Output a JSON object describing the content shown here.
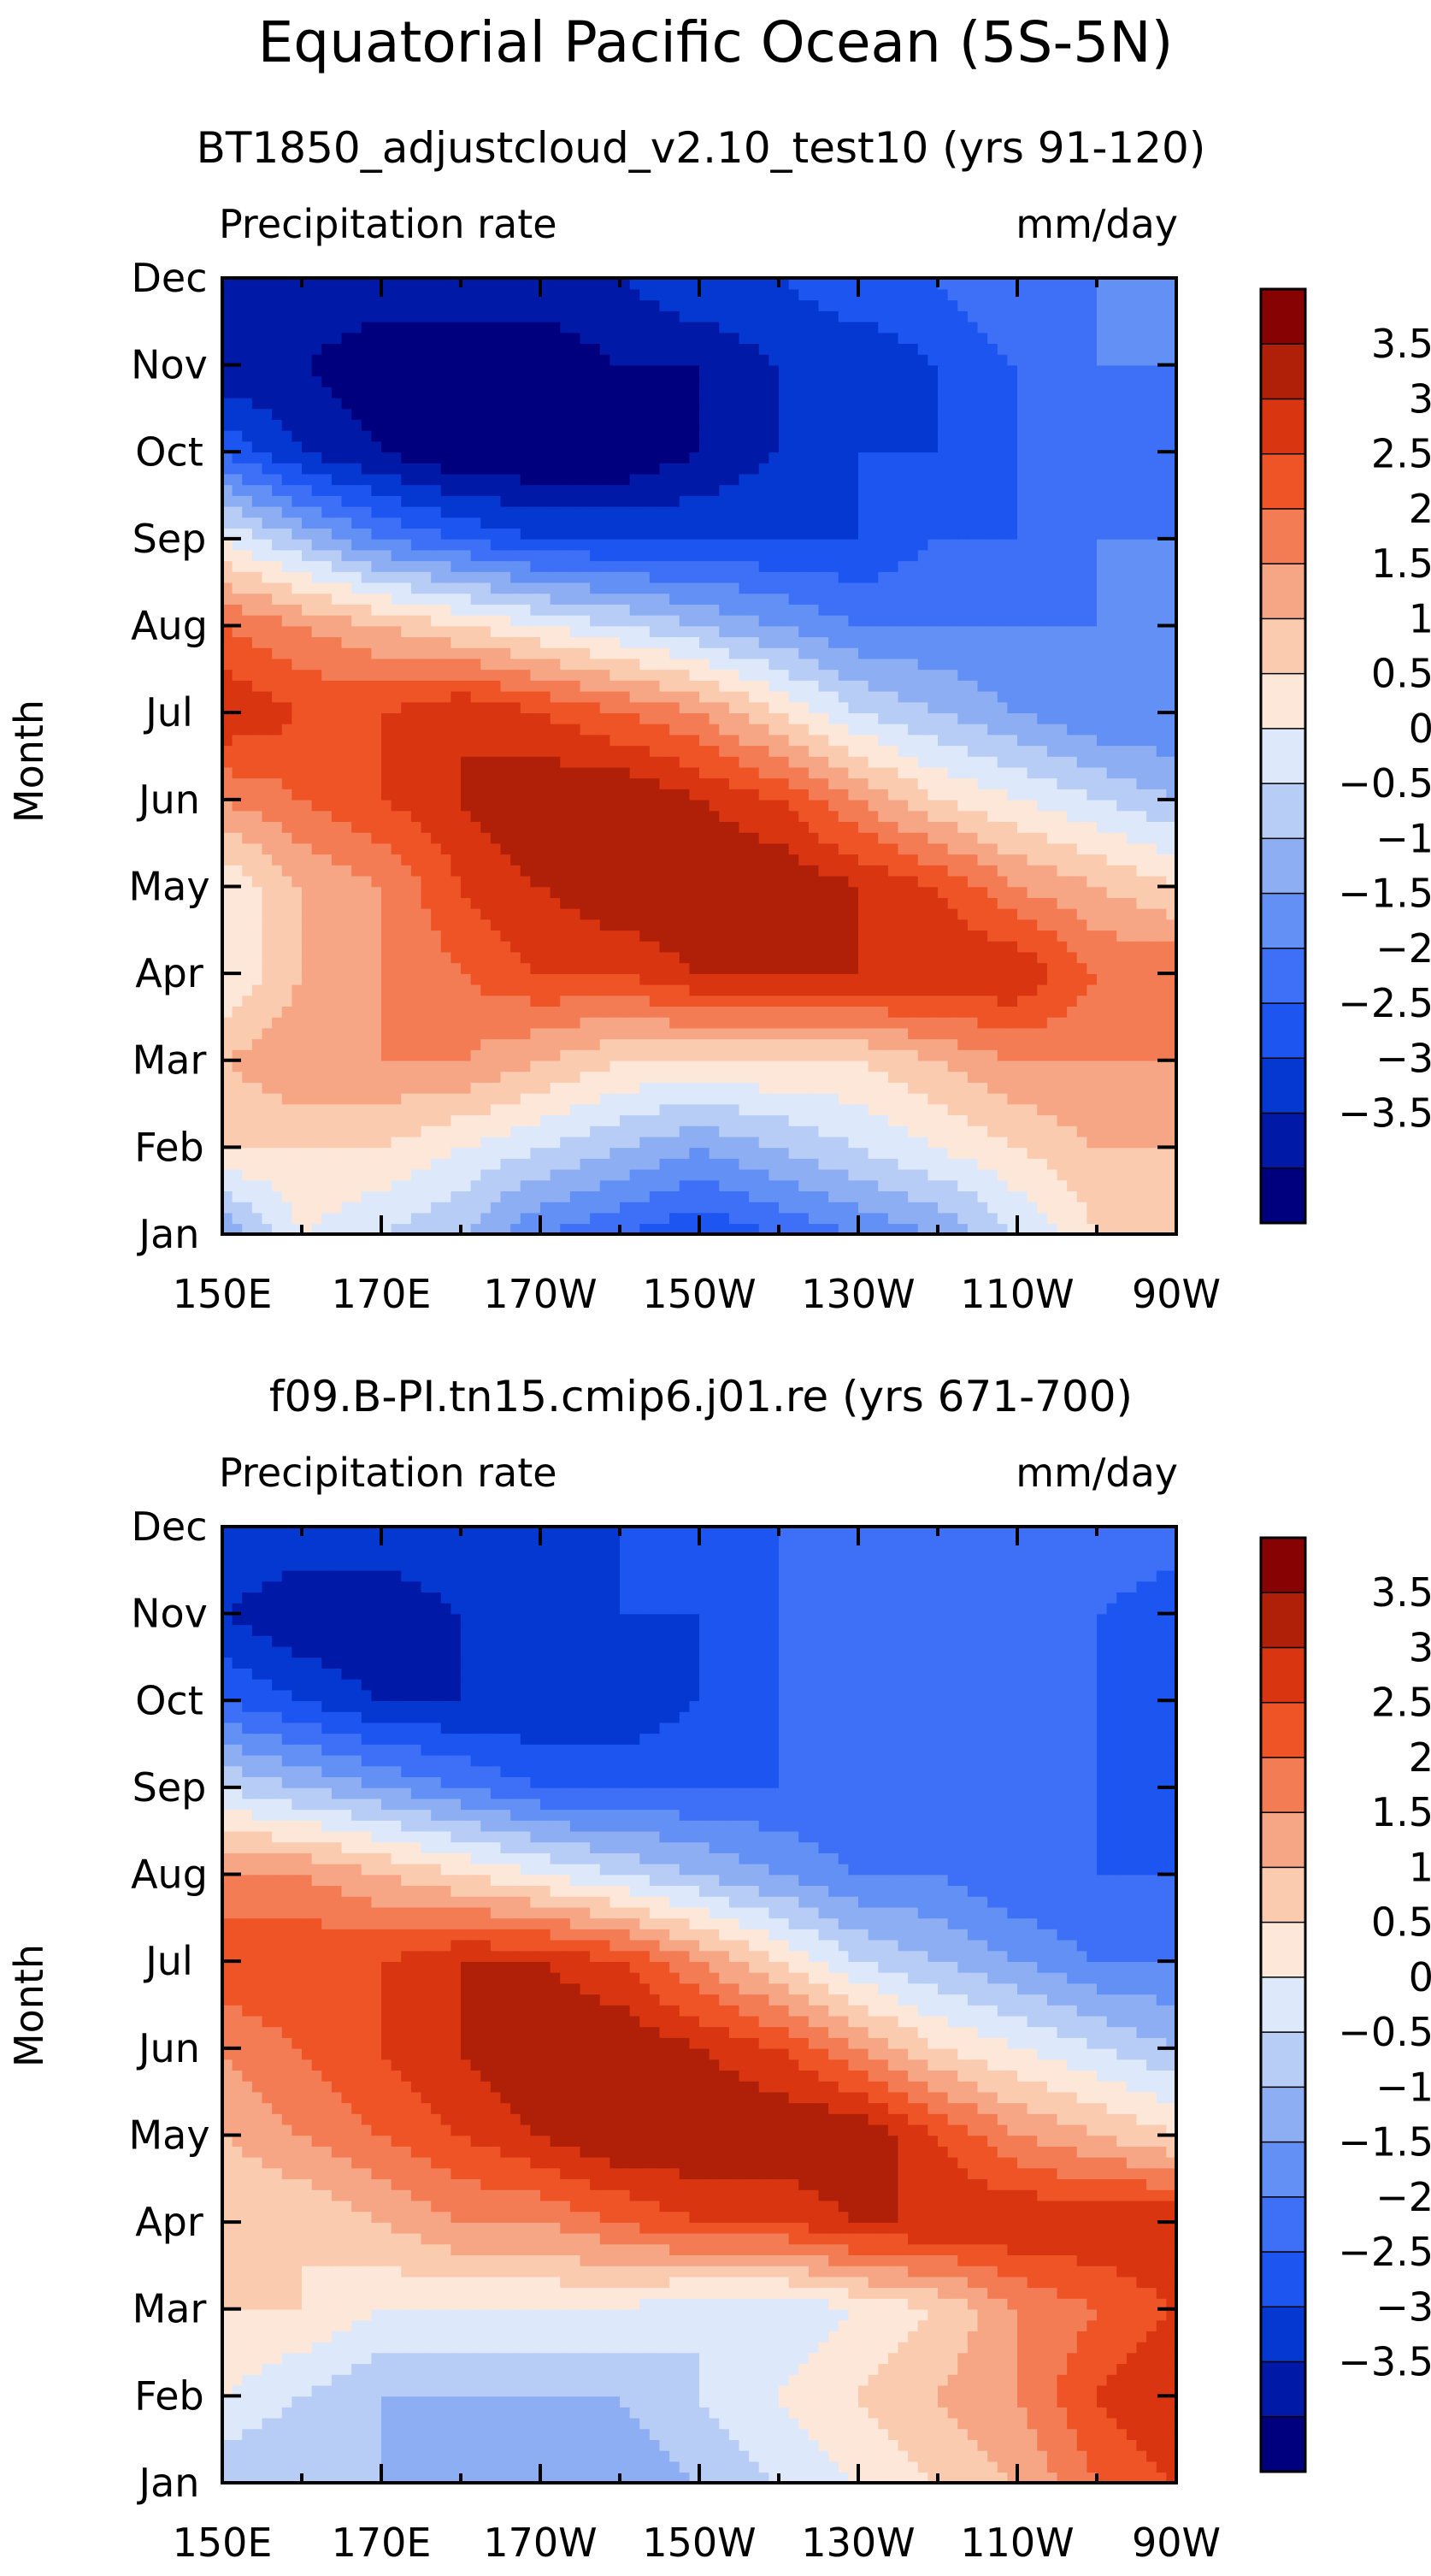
{
  "figure_title": "Equatorial Pacific Ocean (5S-5N)",
  "chart_data": [
    {
      "type": "heatmap",
      "title": "BT1850_adjustcloud_v2.10_test10 (yrs 91-120)",
      "left_label": "Precipitation rate",
      "right_label": "mm/day",
      "ylabel": "Month",
      "x_ticks": [
        "150E",
        "170E",
        "170W",
        "150W",
        "130W",
        "110W",
        "90W"
      ],
      "y_ticks": [
        "Jan",
        "Feb",
        "Mar",
        "Apr",
        "May",
        "Jun",
        "Jul",
        "Aug",
        "Sep",
        "Oct",
        "Nov",
        "Dec"
      ],
      "xlim": [
        150,
        270
      ],
      "ylim": [
        1,
        12
      ],
      "colorbar_labels": [
        "3.5",
        "3",
        "2.5",
        "2",
        "1.5",
        "1",
        "0.5",
        "0",
        "-0.5",
        "-1",
        "-1.5",
        "-2",
        "-2.5",
        "-3",
        "-3.5"
      ],
      "approx_field": {
        "x": [
          150,
          160,
          170,
          180,
          190,
          200,
          210,
          220,
          230,
          240,
          250,
          260,
          270
        ],
        "rows": [
          [
            -1.0,
            0.5,
            0.0,
            -0.5,
            -1.5,
            -2.0,
            -2.5,
            -2.0,
            -1.5,
            -1.0,
            0.0,
            1.0,
            1.5
          ],
          [
            1.0,
            1.0,
            1.0,
            0.5,
            0.0,
            -0.5,
            -1.0,
            -0.5,
            0.0,
            0.5,
            1.0,
            1.5,
            1.5
          ],
          [
            1.5,
            2.0,
            2.0,
            2.0,
            1.5,
            1.0,
            1.0,
            1.0,
            1.0,
            1.5,
            2.0,
            2.0,
            2.0
          ],
          [
            0.5,
            1.5,
            2.0,
            2.5,
            3.0,
            3.0,
            3.5,
            3.5,
            3.5,
            3.5,
            3.5,
            2.5,
            2.5
          ],
          [
            0.5,
            1.5,
            2.0,
            3.0,
            3.5,
            4.0,
            4.0,
            4.0,
            3.5,
            3.0,
            2.0,
            1.5,
            1.0
          ],
          [
            2.0,
            2.5,
            3.0,
            3.5,
            4.0,
            4.0,
            3.5,
            3.0,
            2.0,
            1.0,
            0.5,
            0.0,
            -0.5
          ],
          [
            3.5,
            3.0,
            3.0,
            3.5,
            3.0,
            2.5,
            2.0,
            1.0,
            0.0,
            -0.5,
            -1.0,
            -1.5,
            -1.5
          ],
          [
            2.5,
            2.0,
            1.5,
            1.0,
            0.5,
            0.0,
            -0.5,
            -1.0,
            -1.5,
            -1.5,
            -1.5,
            -1.5,
            -1.0
          ],
          [
            0.5,
            -0.5,
            -1.5,
            -2.0,
            -2.5,
            -2.5,
            -2.5,
            -2.5,
            -2.5,
            -2.0,
            -2.0,
            -1.5,
            -1.5
          ],
          [
            -2.0,
            -3.0,
            -3.5,
            -4.0,
            -4.0,
            -4.0,
            -3.5,
            -3.0,
            -2.5,
            -2.5,
            -2.0,
            -2.0,
            -1.5
          ],
          [
            -3.5,
            -3.5,
            -4.0,
            -4.0,
            -4.0,
            -3.5,
            -3.5,
            -3.0,
            -3.0,
            -2.5,
            -2.0,
            -1.5,
            -1.5
          ],
          [
            -3.0,
            -3.0,
            -3.0,
            -3.0,
            -3.0,
            -3.0,
            -2.5,
            -2.5,
            -2.0,
            -2.0,
            -1.5,
            -1.5,
            -1.0
          ]
        ]
      }
    },
    {
      "type": "heatmap",
      "title": "f09.B-PI.tn15.cmip6.j01.re (yrs 671-700)",
      "left_label": "Precipitation rate",
      "right_label": "mm/day",
      "ylabel": "Month",
      "x_ticks": [
        "150E",
        "170E",
        "170W",
        "150W",
        "130W",
        "110W",
        "90W"
      ],
      "y_ticks": [
        "Jan",
        "Feb",
        "Mar",
        "Apr",
        "May",
        "Jun",
        "Jul",
        "Aug",
        "Sep",
        "Oct",
        "Nov",
        "Dec"
      ],
      "xlim": [
        150,
        270
      ],
      "ylim": [
        1,
        12
      ],
      "colorbar_labels": [
        "3.5",
        "3",
        "2.5",
        "2",
        "1.5",
        "1",
        "0.5",
        "0",
        "-0.5",
        "-1",
        "-1.5",
        "-2",
        "-2.5",
        "-3",
        "-3.5"
      ],
      "approx_field": {
        "x": [
          150,
          160,
          170,
          180,
          190,
          200,
          210,
          220,
          230,
          240,
          250,
          260,
          270
        ],
        "rows": [
          [
            -0.5,
            -0.5,
            -0.5,
            -1.0,
            -1.0,
            -1.0,
            -0.5,
            0.0,
            0.5,
            1.0,
            1.5,
            2.5,
            3.0
          ],
          [
            0.5,
            0.0,
            -0.5,
            -0.5,
            -0.5,
            -0.5,
            0.0,
            0.5,
            1.0,
            1.5,
            2.0,
            3.0,
            3.5
          ],
          [
            1.0,
            1.0,
            0.5,
            0.5,
            0.5,
            0.5,
            0.0,
            0.0,
            0.5,
            1.0,
            2.0,
            2.5,
            3.0
          ],
          [
            1.0,
            1.0,
            1.5,
            2.0,
            2.0,
            2.5,
            3.0,
            3.0,
            3.5,
            3.5,
            3.5,
            3.5,
            3.5
          ],
          [
            1.5,
            2.0,
            2.5,
            3.0,
            3.5,
            4.0,
            4.0,
            4.0,
            4.0,
            3.0,
            2.0,
            1.5,
            1.0
          ],
          [
            2.0,
            2.5,
            3.0,
            3.5,
            4.0,
            4.0,
            3.5,
            3.0,
            2.0,
            1.0,
            0.5,
            0.0,
            -0.5
          ],
          [
            3.0,
            3.0,
            3.0,
            3.5,
            3.5,
            3.0,
            2.0,
            1.0,
            0.0,
            -0.5,
            -1.0,
            -1.5,
            -1.5
          ],
          [
            2.0,
            2.0,
            1.5,
            1.0,
            0.5,
            0.0,
            -0.5,
            -1.0,
            -1.5,
            -1.5,
            -2.0,
            -2.0,
            -2.0
          ],
          [
            0.0,
            -0.5,
            -1.0,
            -1.5,
            -2.0,
            -2.0,
            -2.0,
            -2.0,
            -2.0,
            -2.0,
            -2.0,
            -2.0,
            -2.5
          ],
          [
            -2.0,
            -2.5,
            -3.0,
            -3.0,
            -3.0,
            -3.0,
            -2.5,
            -2.0,
            -2.0,
            -2.0,
            -2.0,
            -2.0,
            -2.5
          ],
          [
            -3.0,
            -3.5,
            -3.5,
            -3.0,
            -3.0,
            -2.5,
            -2.5,
            -2.0,
            -2.0,
            -2.0,
            -2.0,
            -2.0,
            -2.5
          ],
          [
            -2.5,
            -2.5,
            -2.5,
            -2.5,
            -2.5,
            -2.5,
            -2.0,
            -2.0,
            -2.0,
            -1.5,
            -1.5,
            -1.5,
            -1.5
          ]
        ]
      }
    }
  ],
  "colors": {
    "levels": [
      "#00007f",
      "#0019a6",
      "#0538d1",
      "#1c55ef",
      "#3d70f7",
      "#6390f4",
      "#8eaef3",
      "#b8cdf5",
      "#dde9fb",
      "#fde7d8",
      "#fbcbb0",
      "#f6a684",
      "#f37c55",
      "#ef5427",
      "#d83510",
      "#b02009",
      "#870303"
    ]
  }
}
